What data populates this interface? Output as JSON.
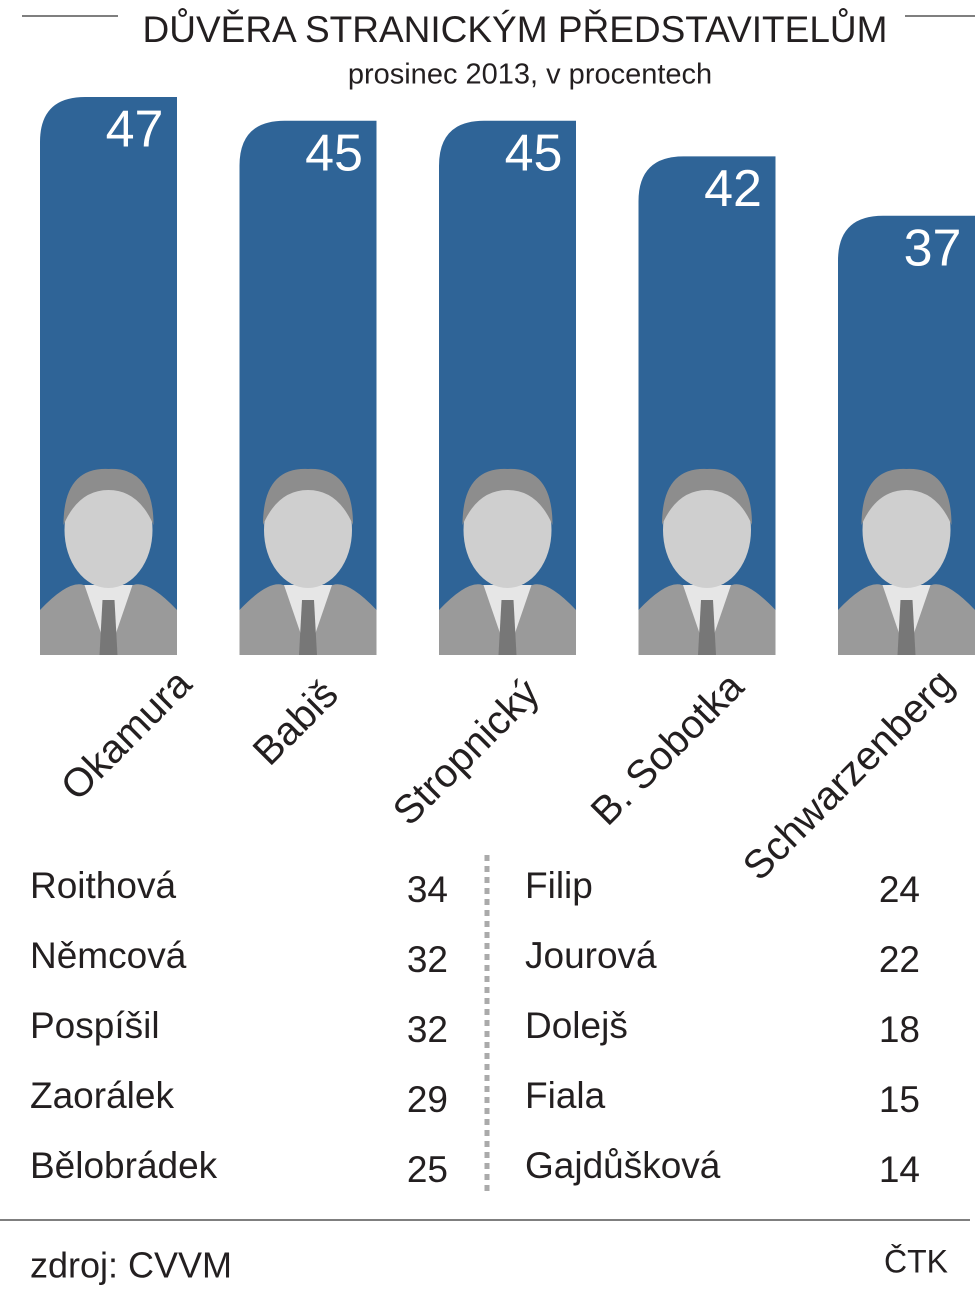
{
  "chart_data": {
    "type": "bar",
    "title": "DŮVĚRA STRANICKÝM PŘEDSTAVITELŮM",
    "subtitle": "prosinec 2013, v procentech",
    "categories": [
      "Okamura",
      "Babiš",
      "Stropnický",
      "B. Sobotka",
      "Schwarzenberg"
    ],
    "values": [
      47,
      45,
      45,
      42,
      37
    ],
    "color": "#2f6497"
  },
  "table": {
    "left": [
      [
        "Roithová",
        34
      ],
      [
        "Němcová",
        32
      ],
      [
        "Pospíšil",
        32
      ],
      [
        "Zaorálek",
        29
      ],
      [
        "Bělobrádek",
        25
      ]
    ],
    "right": [
      [
        "Filip",
        24
      ],
      [
        "Jourová",
        22
      ],
      [
        "Dolejš",
        18
      ],
      [
        "Fiala",
        15
      ],
      [
        "Gajdůšková",
        14
      ]
    ]
  },
  "footer": {
    "source": "zdroj: CVVM",
    "credit": "ČTK"
  }
}
